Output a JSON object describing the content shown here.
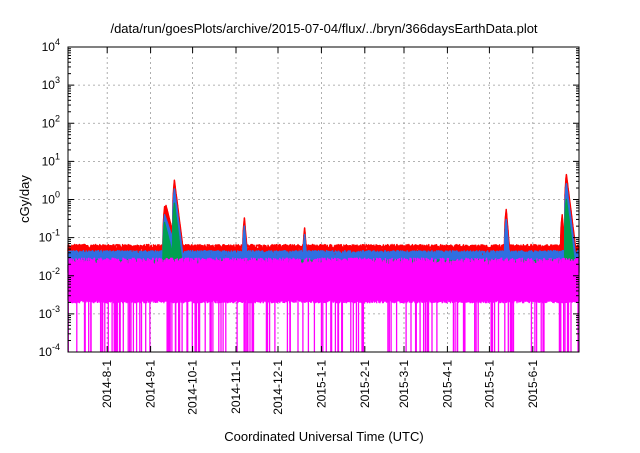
{
  "chart_data": {
    "type": "line",
    "title": "/data/run/goesPlots/archive/2015-07-04/flux/../bryn/366daysEarthData.plot",
    "xlabel": "Coordinated Universal Time (UTC)",
    "ylabel": "cGy/day",
    "yscale": "log",
    "ylim": [
      0.0001,
      10000
    ],
    "xlim": [
      "2014-07-04",
      "2015-07-04"
    ],
    "grid": true,
    "legend": "none",
    "x_ticks": [
      "2014-8-1",
      "2014-9-1",
      "2014-10-1",
      "2014-11-1",
      "2014-12-1",
      "2015-1-1",
      "2015-2-1",
      "2015-3-1",
      "2015-4-1",
      "2015-5-1",
      "2015-6-1"
    ],
    "y_ticks": [
      {
        "value": 0.0001,
        "base": "10",
        "exp": "-4"
      },
      {
        "value": 0.001,
        "base": "10",
        "exp": "-3"
      },
      {
        "value": 0.01,
        "base": "10",
        "exp": "-2"
      },
      {
        "value": 0.1,
        "base": "10",
        "exp": "-1"
      },
      {
        "value": 1,
        "base": "10",
        "exp": "0"
      },
      {
        "value": 10,
        "base": "10",
        "exp": "1"
      },
      {
        "value": 100,
        "base": "10",
        "exp": "2"
      },
      {
        "value": 1000,
        "base": "10",
        "exp": "3"
      },
      {
        "value": 10000,
        "base": "10",
        "exp": "4"
      }
    ],
    "series": [
      {
        "color": "#ff0000",
        "baseline": 0.055,
        "events": [
          {
            "start": "2014-09-10",
            "peak_date": "2014-09-11",
            "peak": 0.65,
            "decay_days": 4
          },
          {
            "start": "2014-09-11",
            "peak_date": "2014-09-12",
            "peak": 0.7,
            "decay_days": 3
          },
          {
            "start": "2014-09-17",
            "peak_date": "2014-09-18",
            "peak": 3.2,
            "decay_days": 1.5
          },
          {
            "start": "2014-11-06",
            "peak_date": "2014-11-07",
            "peak": 0.33,
            "decay_days": 1
          },
          {
            "start": "2014-12-19",
            "peak_date": "2014-12-20",
            "peak": 0.18,
            "decay_days": 1
          },
          {
            "start": "2015-05-12",
            "peak_date": "2015-05-13",
            "peak": 0.55,
            "decay_days": 1
          },
          {
            "start": "2015-06-21",
            "peak_date": "2015-06-22",
            "peak": 0.4,
            "decay_days": 1
          },
          {
            "start": "2015-06-24",
            "peak_date": "2015-06-25",
            "peak": 4.5,
            "decay_days": 1.5
          },
          {
            "start": "2015-06-27",
            "peak_date": "2015-06-28",
            "peak": 0.28,
            "decay_days": 1
          }
        ]
      },
      {
        "color": "#2f6fe0",
        "baseline": 0.038,
        "events": [
          {
            "start": "2014-09-10",
            "peak_date": "2014-09-11",
            "peak": 0.4,
            "decay_days": 4
          },
          {
            "start": "2014-09-17",
            "peak_date": "2014-09-18",
            "peak": 1.9,
            "decay_days": 1.5
          },
          {
            "start": "2014-11-06",
            "peak_date": "2014-11-07",
            "peak": 0.2,
            "decay_days": 1
          },
          {
            "start": "2014-12-19",
            "peak_date": "2014-12-20",
            "peak": 0.12,
            "decay_days": 1
          },
          {
            "start": "2015-05-12",
            "peak_date": "2015-05-13",
            "peak": 0.3,
            "decay_days": 1
          },
          {
            "start": "2015-06-24",
            "peak_date": "2015-06-25",
            "peak": 2.6,
            "decay_days": 1.5
          }
        ]
      },
      {
        "color": "#00a050",
        "baseline": 0.022,
        "events": [
          {
            "start": "2014-09-10",
            "peak_date": "2014-09-11",
            "peak": 0.25,
            "decay_days": 3
          },
          {
            "start": "2014-09-17",
            "peak_date": "2014-09-18",
            "peak": 0.8,
            "decay_days": 1.5
          },
          {
            "start": "2015-06-24",
            "peak_date": "2015-06-25",
            "peak": 1.0,
            "decay_days": 1.5
          }
        ]
      },
      {
        "color": "#ff00ff",
        "baseline": 0.015,
        "range": [
          0.0021,
          0.03
        ],
        "dropouts_to": 0.0001
      }
    ]
  }
}
